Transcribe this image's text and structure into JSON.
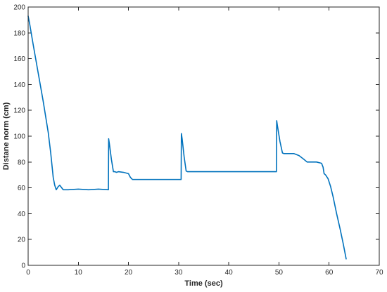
{
  "chart_data": {
    "type": "line",
    "xlabel": "Time (sec)",
    "ylabel": "Distane norm (cm)",
    "xlim": [
      0,
      70
    ],
    "ylim": [
      0,
      200
    ],
    "xticks": [
      0,
      10,
      20,
      30,
      40,
      50,
      60,
      70
    ],
    "yticks": [
      0,
      20,
      40,
      60,
      80,
      100,
      120,
      140,
      160,
      180,
      200
    ],
    "grid": false,
    "box": true,
    "line_color": "#0072bd",
    "series": [
      {
        "x": [
          0,
          0.3,
          1,
          2,
          3,
          4,
          4.5,
          5,
          5.3,
          5.6,
          6,
          6.3,
          6.7,
          7,
          8,
          10,
          12,
          14,
          16,
          16.05,
          16.2,
          16.6,
          17,
          17.3,
          17.6,
          18,
          19,
          20,
          20.4,
          20.8,
          21,
          22,
          25,
          28,
          30.5,
          30.55,
          30.7,
          31.1,
          31.5,
          31.8,
          32,
          35,
          40,
          45,
          49.5,
          49.55,
          49.7,
          50.2,
          50.7,
          51,
          53,
          54,
          55,
          55.6,
          56,
          57.5,
          58.5,
          58.8,
          59,
          59.3,
          59.8,
          60.3,
          60.8,
          61.5,
          62.2,
          62.8,
          63.4
        ],
        "y": [
          193,
          187,
          171,
          149,
          127,
          103,
          87,
          68,
          62,
          58.5,
          61,
          62,
          60,
          58.5,
          58.5,
          59,
          58.5,
          59,
          58.5,
          98,
          94,
          82,
          72.5,
          72.5,
          72,
          72.5,
          72,
          71,
          68,
          66.5,
          66.5,
          66.5,
          66.5,
          66.5,
          66.5,
          102,
          98,
          84,
          73,
          72.5,
          72.5,
          72.5,
          72.5,
          72.5,
          72.5,
          112,
          108,
          96,
          87,
          86.5,
          86.5,
          85,
          82,
          80,
          80,
          80,
          79,
          76,
          71,
          70,
          67,
          61,
          53,
          40,
          28,
          17,
          5
        ]
      }
    ]
  }
}
